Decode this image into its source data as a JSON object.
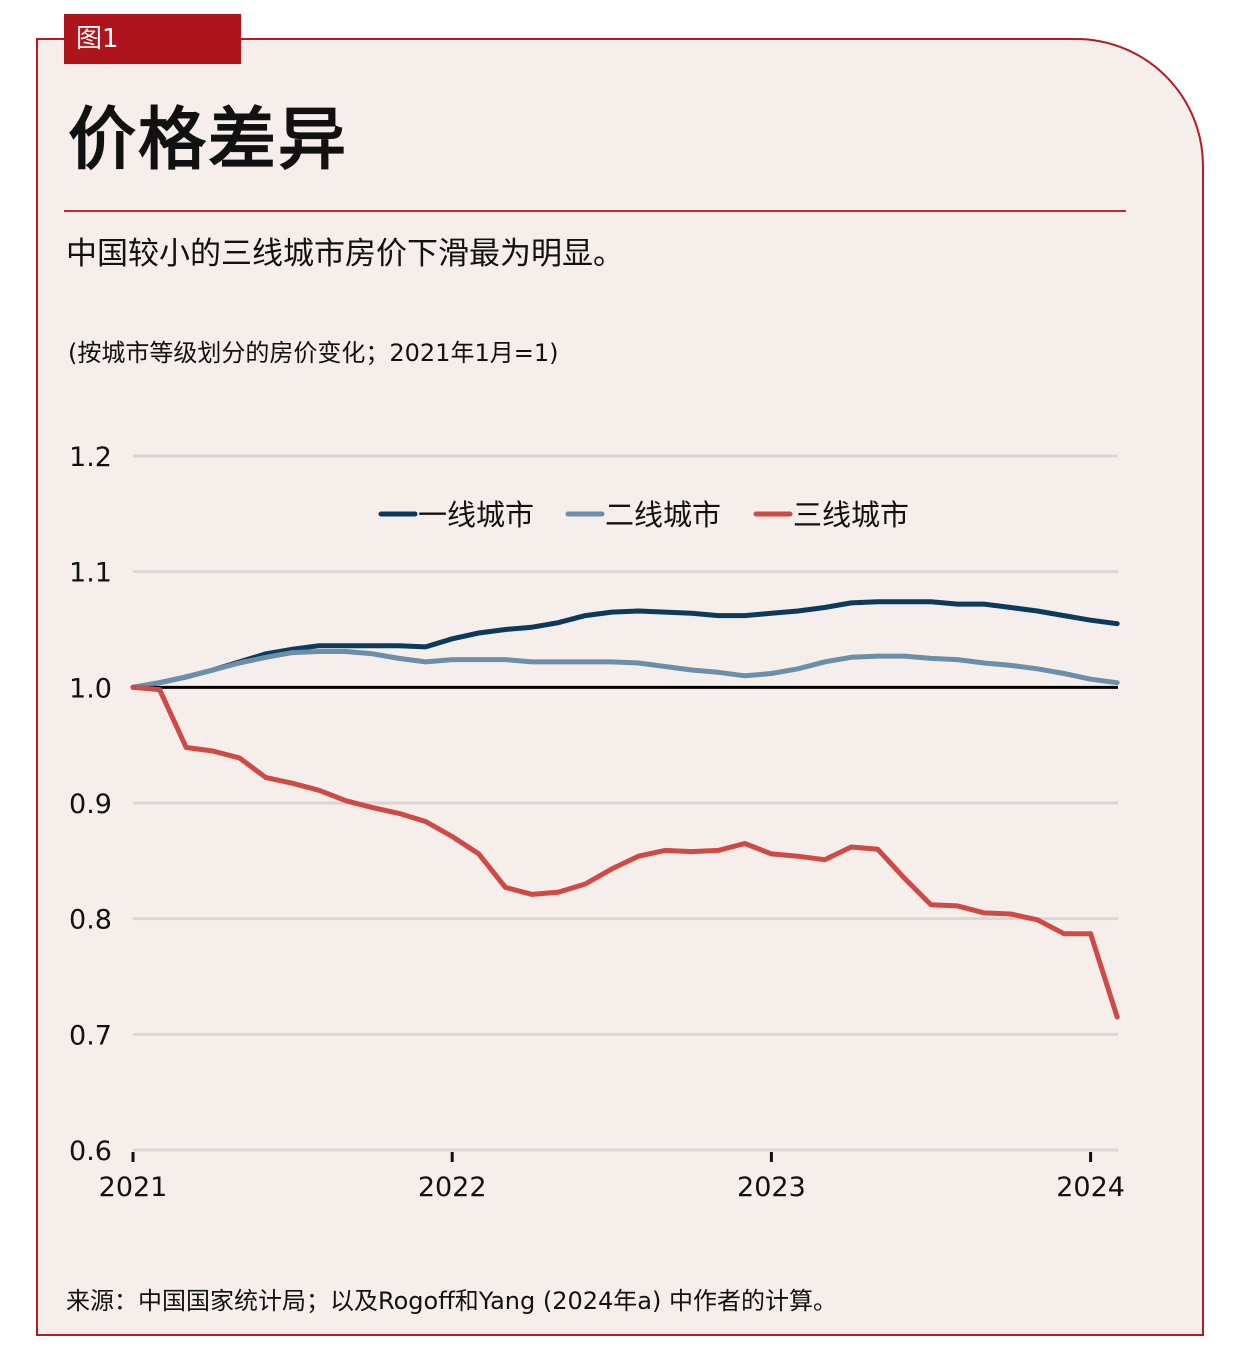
{
  "figure_label": "图1",
  "title": "价格差异",
  "subtitle": "中国较小的三线城市房价下滑最为明显。",
  "unit_note": "(按城市等级划分的房价变化；2021年1月=1)",
  "source": "来源：中国国家统计局；以及Rogoff和Yang (2024年a) 中作者的计算。",
  "colors": {
    "frame": "#b01c22",
    "tag_bg": "#ad141b",
    "background": "#f5eeeb",
    "tier1": "#0b3a5c",
    "tier2": "#6b8fab",
    "tier3": "#d04a45",
    "baseline": "#000000",
    "grid": "#d9d6d3"
  },
  "chart_data": {
    "type": "line",
    "title": "价格差异",
    "subtitle": "中国较小的三线城市房价下滑最为明显。",
    "xlabel": "",
    "ylabel": "(按城市等级划分的房价变化；2021年1月=1)",
    "x_unit": "months since Jan 2021",
    "x_start": "2021-01",
    "x_end": "2024-02",
    "xlim_months": [
      0,
      37
    ],
    "x_ticks": [
      {
        "label": "2021",
        "month": 0
      },
      {
        "label": "2022",
        "month": 12
      },
      {
        "label": "2023",
        "month": 24
      },
      {
        "label": "2024",
        "month": 36
      }
    ],
    "ylim": [
      0.6,
      1.2
    ],
    "y_ticks": [
      {
        "label": "1.2",
        "value": 1.2
      },
      {
        "label": "1.1",
        "value": 1.1
      },
      {
        "label": "1.0",
        "value": 1.0
      },
      {
        "label": "0.9",
        "value": 0.9
      },
      {
        "label": "0.8",
        "value": 0.8
      },
      {
        "label": "0.7",
        "value": 0.7
      },
      {
        "label": "0.6",
        "value": 0.6
      }
    ],
    "reference_line": 1.0,
    "grid": true,
    "legend_position": "top-center",
    "series": [
      {
        "name": "一线城市",
        "color_key": "tier1",
        "values": [
          1.0,
          1.004,
          1.009,
          1.015,
          1.022,
          1.029,
          1.033,
          1.036,
          1.036,
          1.036,
          1.036,
          1.035,
          1.042,
          1.047,
          1.05,
          1.052,
          1.056,
          1.062,
          1.065,
          1.066,
          1.065,
          1.064,
          1.062,
          1.062,
          1.064,
          1.066,
          1.069,
          1.073,
          1.074,
          1.074,
          1.074,
          1.072,
          1.072,
          1.069,
          1.066,
          1.062,
          1.058,
          1.055
        ]
      },
      {
        "name": "二线城市",
        "color_key": "tier2",
        "values": [
          1.0,
          1.004,
          1.009,
          1.015,
          1.021,
          1.026,
          1.03,
          1.031,
          1.031,
          1.029,
          1.025,
          1.022,
          1.024,
          1.024,
          1.024,
          1.022,
          1.022,
          1.022,
          1.022,
          1.021,
          1.018,
          1.015,
          1.013,
          1.01,
          1.012,
          1.016,
          1.022,
          1.026,
          1.027,
          1.027,
          1.025,
          1.024,
          1.021,
          1.019,
          1.016,
          1.012,
          1.007,
          1.004
        ]
      },
      {
        "name": "三线城市",
        "color_key": "tier3",
        "values": [
          1.0,
          0.998,
          0.948,
          0.945,
          0.939,
          0.922,
          0.917,
          0.911,
          0.902,
          0.896,
          0.891,
          0.884,
          0.871,
          0.856,
          0.827,
          0.821,
          0.823,
          0.83,
          0.843,
          0.854,
          0.859,
          0.858,
          0.859,
          0.865,
          0.856,
          0.854,
          0.851,
          0.862,
          0.86,
          0.835,
          0.812,
          0.811,
          0.805,
          0.804,
          0.799,
          0.787,
          0.787,
          0.715
        ]
      }
    ]
  }
}
